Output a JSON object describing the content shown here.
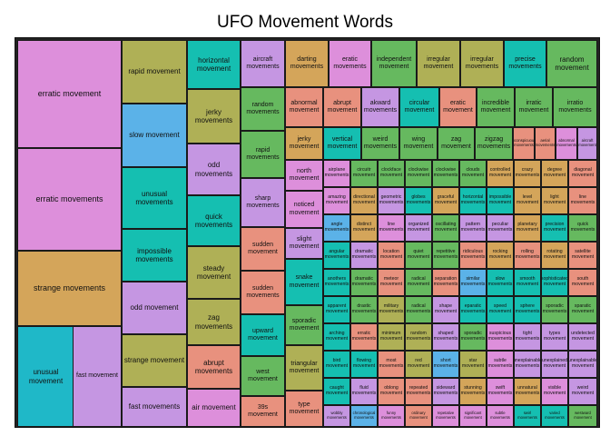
{
  "title": "UFO Movement Words",
  "chart_data": {
    "type": "treemap",
    "title": "UFO Movement Words",
    "colors": [
      "#DD8FDB",
      "#D4A55A",
      "#1FB8C8",
      "#AFB056",
      "#C596E2",
      "#15BFB1",
      "#E8917E",
      "#66B95F",
      "#5BB2E8",
      "#6CA8E6"
    ],
    "tiles": [
      {
        "label": "erratic movement",
        "value": 8.8,
        "color": "#DD8FDB"
      },
      {
        "label": "erratic movements",
        "value": 8.5,
        "color": "#DD8FDB"
      },
      {
        "label": "strange movements",
        "value": 5.3,
        "color": "#D4A55A"
      },
      {
        "label": "unusual movement",
        "value": 5.4,
        "color": "#1FB8C8"
      },
      {
        "label": "fast movement",
        "value": 5.4,
        "color": "#C596E2"
      },
      {
        "label": "rapid movement",
        "value": 3.7,
        "color": "#AFB056"
      },
      {
        "label": "slow movement",
        "value": 3.6,
        "color": "#5BB2E8"
      },
      {
        "label": "unusual movements",
        "value": 3.6,
        "color": "#15BFB1"
      },
      {
        "label": "impossible movements",
        "value": 3.1,
        "color": "#15BFB1"
      },
      {
        "label": "odd movement",
        "value": 3.1,
        "color": "#C596E2"
      },
      {
        "label": "strange movement",
        "value": 3.1,
        "color": "#AFB056"
      },
      {
        "label": "fast movements",
        "value": 2.8,
        "color": "#C596E2"
      },
      {
        "label": "horizontal movement",
        "value": 2.4,
        "color": "#15BFB1"
      },
      {
        "label": "jerky movements",
        "value": 2.4,
        "color": "#AFB056"
      },
      {
        "label": "odd movements",
        "value": 2.5,
        "color": "#C596E2"
      },
      {
        "label": "quick movements",
        "value": 2.3,
        "color": "#15BFB1"
      },
      {
        "label": "steady movement",
        "value": 2.3,
        "color": "#AFB056"
      },
      {
        "label": "zag movements",
        "value": 2.1,
        "color": "#AFB056"
      },
      {
        "label": "abrupt movements",
        "value": 1.7,
        "color": "#E8917E"
      },
      {
        "label": "air movement",
        "value": 1.5,
        "color": "#DD8FDB"
      },
      {
        "label": "aircraft movements",
        "value": 1.5,
        "color": "#C596E2"
      },
      {
        "label": "random movements",
        "value": 1.7,
        "color": "#66B95F"
      },
      {
        "label": "rapid movements",
        "value": 1.8,
        "color": "#66B95F"
      },
      {
        "label": "sharp movements",
        "value": 1.8,
        "color": "#C596E2"
      },
      {
        "label": "sudden movement",
        "value": 1.7,
        "color": "#E8917E"
      },
      {
        "label": "sudden movements",
        "value": 1.7,
        "color": "#E8917E"
      },
      {
        "label": "upward movement",
        "value": 1.7,
        "color": "#15BFB1"
      },
      {
        "label": "west movement",
        "value": 1.6,
        "color": "#66B95F"
      },
      {
        "label": "39s movement",
        "value": 1.0,
        "color": "#E8917E"
      },
      {
        "label": "darting movements",
        "value": 1.1,
        "color": "#D4A55A"
      },
      {
        "label": "eratic movements",
        "value": 1.1,
        "color": "#DD8FDB"
      },
      {
        "label": "independent movement",
        "value": 1.1,
        "color": "#66B95F"
      },
      {
        "label": "irregular movement",
        "value": 1.1,
        "color": "#AFB056"
      },
      {
        "label": "irregular movements",
        "value": 1.1,
        "color": "#AFB056"
      },
      {
        "label": "precise movements",
        "value": 1.1,
        "color": "#15BFB1"
      },
      {
        "label": "random movement",
        "value": 1.1,
        "color": "#66B95F"
      },
      {
        "label": "abnormal movement",
        "value": 0.85,
        "color": "#E8917E"
      },
      {
        "label": "abrupt movement",
        "value": 0.85,
        "color": "#E8917E"
      },
      {
        "label": "akward movements",
        "value": 0.75,
        "color": "#C596E2"
      },
      {
        "label": "circular movement",
        "value": 0.75,
        "color": "#15BFB1"
      },
      {
        "label": "eratic movement",
        "value": 0.75,
        "color": "#E8917E"
      },
      {
        "label": "incredible movement",
        "value": 0.75,
        "color": "#66B95F"
      },
      {
        "label": "irratic movement",
        "value": 0.7,
        "color": "#66B95F"
      },
      {
        "label": "irratio movements",
        "value": 0.7,
        "color": "#66B95F"
      },
      {
        "label": "jerky movement",
        "value": 0.8,
        "color": "#D4A55A"
      },
      {
        "label": "vertical movement",
        "value": 0.75,
        "color": "#15BFB1"
      },
      {
        "label": "weird movements",
        "value": 0.7,
        "color": "#66B95F"
      },
      {
        "label": "wing movement",
        "value": 0.7,
        "color": "#66B95F"
      },
      {
        "label": "zag movement",
        "value": 0.7,
        "color": "#66B95F"
      },
      {
        "label": "zigzag movements",
        "value": 0.7,
        "color": "#66B95F"
      },
      {
        "label": "inconspicuous movements",
        "value": 0.3,
        "color": "#E8917E"
      },
      {
        "label": "aerial movements",
        "value": 0.3,
        "color": "#E8917E"
      },
      {
        "label": "abnormal movements",
        "value": 0.3,
        "color": "#DD8FDB"
      },
      {
        "label": "aircraft movement",
        "value": 0.3,
        "color": "#C596E2"
      },
      {
        "label": "north movement",
        "value": 0.9,
        "color": "#DD8FDB"
      },
      {
        "label": "noticed movement",
        "value": 0.9,
        "color": "#DD8FDB"
      },
      {
        "label": "slight movement",
        "value": 0.9,
        "color": "#C596E2"
      },
      {
        "label": "snake movement",
        "value": 0.9,
        "color": "#15BFB1"
      },
      {
        "label": "sporadic movement",
        "value": 1.0,
        "color": "#66B95F"
      },
      {
        "label": "triangular movement",
        "value": 1.0,
        "color": "#AFB056"
      },
      {
        "label": "type movement",
        "value": 1.0,
        "color": "#E8917E"
      },
      {
        "label": "airplane movements",
        "value": 0.45,
        "color": "#DD8FDB"
      },
      {
        "label": "circuitr movement",
        "value": 0.45,
        "color": "#66B95F"
      },
      {
        "label": "clockface movement",
        "value": 0.45,
        "color": "#66B95F"
      },
      {
        "label": "clockwise movement",
        "value": 0.45,
        "color": "#66B95F"
      },
      {
        "label": "clockwise movements",
        "value": 0.45,
        "color": "#66B95F"
      },
      {
        "label": "clouds movement",
        "value": 0.45,
        "color": "#66B95F"
      },
      {
        "label": "controlled movement",
        "value": 0.45,
        "color": "#D4A55A"
      },
      {
        "label": "crazy movements",
        "value": 0.45,
        "color": "#D4A55A"
      },
      {
        "label": "degree movement",
        "value": 0.45,
        "color": "#D4A55A"
      },
      {
        "label": "diagonal movement",
        "value": 0.45,
        "color": "#E8917E"
      },
      {
        "label": "amazing movement",
        "value": 0.45,
        "color": "#DD8FDB"
      },
      {
        "label": "directional movement",
        "value": 0.45,
        "color": "#D4A55A"
      },
      {
        "label": "geometric movements",
        "value": 0.45,
        "color": "#C596E2"
      },
      {
        "label": "globes movements",
        "value": 0.45,
        "color": "#15BFB1"
      },
      {
        "label": "graceful movement",
        "value": 0.45,
        "color": "#D4A55A"
      },
      {
        "label": "horizontal movements",
        "value": 0.45,
        "color": "#15BFB1"
      },
      {
        "label": "impossible movement",
        "value": 0.45,
        "color": "#15BFB1"
      },
      {
        "label": "level movement",
        "value": 0.45,
        "color": "#D4A55A"
      },
      {
        "label": "light movement",
        "value": 0.45,
        "color": "#D4A55A"
      },
      {
        "label": "line movements",
        "value": 0.45,
        "color": "#E8917E"
      },
      {
        "label": "angle movements",
        "value": 0.45,
        "color": "#5BB2E8"
      },
      {
        "label": "distinct movement",
        "value": 0.45,
        "color": "#D4A55A"
      },
      {
        "label": "line movements",
        "value": 0.45,
        "color": "#DD8FDB"
      },
      {
        "label": "organized movement",
        "value": 0.45,
        "color": "#C596E2"
      },
      {
        "label": "oscillating movement",
        "value": 0.45,
        "color": "#66B95F"
      },
      {
        "label": "pattern movements",
        "value": 0.45,
        "color": "#C596E2"
      },
      {
        "label": "peculiar movements",
        "value": 0.45,
        "color": "#C596E2"
      },
      {
        "label": "planetary movement",
        "value": 0.45,
        "color": "#D4A55A"
      },
      {
        "label": "precision movement",
        "value": 0.45,
        "color": "#15BFB1"
      },
      {
        "label": "quick movements",
        "value": 0.45,
        "color": "#66B95F"
      },
      {
        "label": "angular movements",
        "value": 0.45,
        "color": "#15BFB1"
      },
      {
        "label": "dramatic movements",
        "value": 0.45,
        "color": "#C596E2"
      },
      {
        "label": "location movement",
        "value": 0.45,
        "color": "#E8917E"
      },
      {
        "label": "quiet movement",
        "value": 0.45,
        "color": "#66B95F"
      },
      {
        "label": "repetitive movements",
        "value": 0.45,
        "color": "#66B95F"
      },
      {
        "label": "ridiculous movements",
        "value": 0.45,
        "color": "#E8917E"
      },
      {
        "label": "rocking movement",
        "value": 0.45,
        "color": "#D4A55A"
      },
      {
        "label": "rolling movements",
        "value": 0.45,
        "color": "#E8917E"
      },
      {
        "label": "rotating movement",
        "value": 0.45,
        "color": "#D4A55A"
      },
      {
        "label": "satellite movement",
        "value": 0.45,
        "color": "#E8917E"
      },
      {
        "label": "anothers movements",
        "value": 0.45,
        "color": "#15BFB1"
      },
      {
        "label": "dramatic movements",
        "value": 0.45,
        "color": "#66B95F"
      },
      {
        "label": "meteor movement",
        "value": 0.45,
        "color": "#E8917E"
      },
      {
        "label": "radical movement",
        "value": 0.45,
        "color": "#66B95F"
      },
      {
        "label": "separation movements",
        "value": 0.45,
        "color": "#E8917E"
      },
      {
        "label": "similar movements",
        "value": 0.45,
        "color": "#5BB2E8"
      },
      {
        "label": "slow movements",
        "value": 0.45,
        "color": "#15BFB1"
      },
      {
        "label": "smooth movement",
        "value": 0.45,
        "color": "#15BFB1"
      },
      {
        "label": "sophisticated movement",
        "value": 0.45,
        "color": "#15BFB1"
      },
      {
        "label": "south movement",
        "value": 0.45,
        "color": "#E8917E"
      },
      {
        "label": "apparent movement",
        "value": 0.45,
        "color": "#15BFB1"
      },
      {
        "label": "drastic movements",
        "value": 0.45,
        "color": "#66B95F"
      },
      {
        "label": "military movements",
        "value": 0.45,
        "color": "#AFB056"
      },
      {
        "label": "radical movements",
        "value": 0.45,
        "color": "#66B95F"
      },
      {
        "label": "shape movement",
        "value": 0.45,
        "color": "#C596E2"
      },
      {
        "label": "eparatic movements",
        "value": 0.45,
        "color": "#15BFB1"
      },
      {
        "label": "speed movement",
        "value": 0.45,
        "color": "#15BFB1"
      },
      {
        "label": "sphere movements",
        "value": 0.45,
        "color": "#15BFB1"
      },
      {
        "label": "sporadic movements",
        "value": 0.45,
        "color": "#66B95F"
      },
      {
        "label": "sparatic movement",
        "value": 0.45,
        "color": "#66B95F"
      },
      {
        "label": "arching movement",
        "value": 0.45,
        "color": "#15BFB1"
      },
      {
        "label": "erratic movements",
        "value": 0.45,
        "color": "#E8917E"
      },
      {
        "label": "minimum movement",
        "value": 0.45,
        "color": "#AFB056"
      },
      {
        "label": "random movements",
        "value": 0.45,
        "color": "#AFB056"
      },
      {
        "label": "shaped movements",
        "value": 0.45,
        "color": "#C596E2"
      },
      {
        "label": "sporadic movements",
        "value": 0.35,
        "color": "#66B95F"
      },
      {
        "label": "suspicious movements",
        "value": 0.35,
        "color": "#DD8FDB"
      },
      {
        "label": "tight movements",
        "value": 0.45,
        "color": "#C596E2"
      },
      {
        "label": "types movement",
        "value": 0.45,
        "color": "#C596E2"
      },
      {
        "label": "undetected movement",
        "value": 0.45,
        "color": "#C596E2"
      },
      {
        "label": "bird movement",
        "value": 0.45,
        "color": "#15BFB1"
      },
      {
        "label": "flowing movement",
        "value": 0.45,
        "color": "#15BFB1"
      },
      {
        "label": "most movements",
        "value": 0.45,
        "color": "#E8917E"
      },
      {
        "label": "red movement",
        "value": 0.45,
        "color": "#AFB056"
      },
      {
        "label": "short movements",
        "value": 0.45,
        "color": "#5BB2E8"
      },
      {
        "label": "star movement",
        "value": 0.45,
        "color": "#AFB056"
      },
      {
        "label": "subtle movements",
        "value": 0.45,
        "color": "#DD8FDB"
      },
      {
        "label": "unexplainable movements",
        "value": 0.35,
        "color": "#C596E2"
      },
      {
        "label": "unexplained movement",
        "value": 0.35,
        "color": "#C596E2"
      },
      {
        "label": "unexplainable movement",
        "value": 0.35,
        "color": "#C596E2"
      },
      {
        "label": "caught movement",
        "value": 0.45,
        "color": "#15BFB1"
      },
      {
        "label": "fluid movements",
        "value": 0.45,
        "color": "#C596E2"
      },
      {
        "label": "oblong movement",
        "value": 0.45,
        "color": "#E8917E"
      },
      {
        "label": "repeated movements",
        "value": 0.45,
        "color": "#E8917E"
      },
      {
        "label": "sideward movements",
        "value": 0.45,
        "color": "#C596E2"
      },
      {
        "label": "stunning movements",
        "value": 0.35,
        "color": "#D4A55A"
      },
      {
        "label": "swift movements",
        "value": 0.35,
        "color": "#DD8FDB"
      },
      {
        "label": "unnatural movements",
        "value": 0.35,
        "color": "#D4A55A"
      },
      {
        "label": "visible movement",
        "value": 0.35,
        "color": "#DD8FDB"
      },
      {
        "label": "weird movement",
        "value": 0.35,
        "color": "#C596E2"
      },
      {
        "label": "wobbly movements",
        "value": 0.35,
        "color": "#C596E2"
      },
      {
        "label": "chronological movements",
        "value": 0.45,
        "color": "#5BB2E8"
      },
      {
        "label": "funny movements",
        "value": 0.45,
        "color": "#DD8FDB"
      },
      {
        "label": "ordinary movement",
        "value": 0.45,
        "color": "#E8917E"
      },
      {
        "label": "repetative movements",
        "value": 0.45,
        "color": "#DD8FDB"
      },
      {
        "label": "significant movement",
        "value": 0.45,
        "color": "#DD8FDB"
      },
      {
        "label": "subtle movements",
        "value": 0.45,
        "color": "#DD8FDB"
      },
      {
        "label": "swirl movements",
        "value": 0.35,
        "color": "#15BFB1"
      },
      {
        "label": "varied movements",
        "value": 0.25,
        "color": "#15BFB1"
      },
      {
        "label": "westward movement",
        "value": 0.25,
        "color": "#66B95F"
      },
      {
        "label": "zigzag movement",
        "value": 0.25,
        "color": "#D4A55A"
      },
      {
        "label": "zigging movements",
        "value": 0.25,
        "color": "#D4A55A"
      }
    ]
  }
}
